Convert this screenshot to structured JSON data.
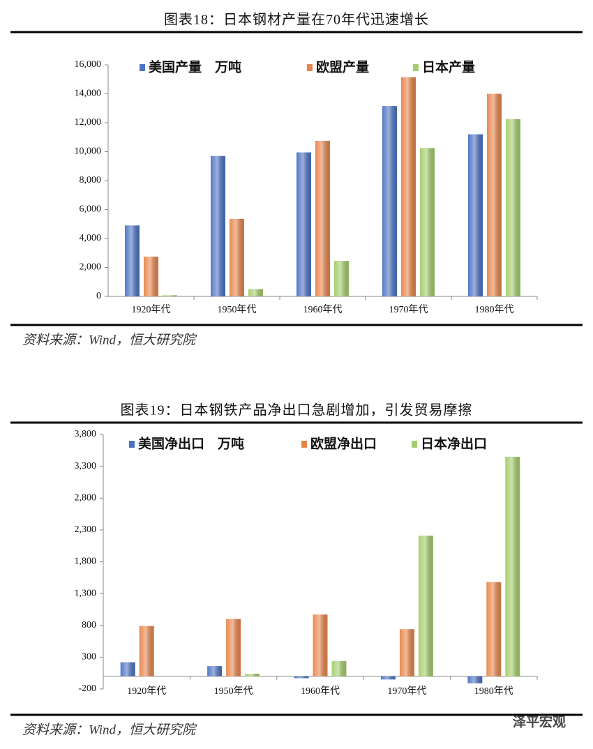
{
  "chart_data": [
    {
      "type": "bar",
      "title": "图表18：日本钢材产量在70年代迅速增长",
      "source": "资料来源：Wind，恒大研究院",
      "categories": [
        "1920年代",
        "1950年代",
        "1960年代",
        "1970年代",
        "1980年代"
      ],
      "series": [
        {
          "name": "美国产量　万吨",
          "color": "#4a72c4",
          "values": [
            4900,
            9700,
            9950,
            13150,
            11200
          ]
        },
        {
          "name": "欧盟产量",
          "color": "#e8844a",
          "values": [
            2750,
            5350,
            10750,
            15150,
            14000
          ]
        },
        {
          "name": "日本产量",
          "color": "#a3cd6a",
          "values": [
            80,
            500,
            2450,
            10250,
            12250
          ]
        }
      ],
      "ylim": [
        0,
        16000
      ],
      "yticks": [
        0,
        {
          "value": 2000,
          "label": "2,000"
        },
        {
          "value": 4000,
          "label": "4,000"
        },
        {
          "value": 6000,
          "label": "6,000"
        },
        {
          "value": 8000,
          "label": "8,000"
        },
        {
          "value": 10000,
          "label": "10,000"
        },
        {
          "value": 12000,
          "label": "12,000"
        },
        {
          "value": 14000,
          "label": "14,000"
        },
        {
          "value": 16000,
          "label": "16,000"
        }
      ],
      "grid": false
    },
    {
      "type": "bar",
      "title": "图表19：日本钢铁产品净出口急剧增加，引发贸易摩擦",
      "source": "资料来源：Wind，恒大研究院",
      "categories": [
        "1920年代",
        "1950年代",
        "1960年代",
        "1970年代",
        "1980年代"
      ],
      "series": [
        {
          "name": "美国净出口　万吨",
          "color": "#4a72c4",
          "values": [
            220,
            160,
            -30,
            -50,
            -110
          ]
        },
        {
          "name": "欧盟净出口",
          "color": "#e8844a",
          "values": [
            790,
            900,
            970,
            740,
            1480
          ]
        },
        {
          "name": "日本净出口",
          "color": "#a3cd6a",
          "values": [
            0,
            40,
            240,
            2210,
            3450
          ]
        }
      ],
      "ylim": [
        -200,
        3800
      ],
      "yticks": [
        -200,
        300,
        800,
        {
          "value": 1300,
          "label": "1,300"
        },
        {
          "value": 1800,
          "label": "1,800"
        },
        {
          "value": 2300,
          "label": "2,300"
        },
        {
          "value": 2800,
          "label": "2,800"
        },
        {
          "value": 3300,
          "label": "3,300"
        },
        {
          "value": 3800,
          "label": "3,800"
        }
      ],
      "grid": false
    }
  ],
  "watermark": "泽平宏观"
}
